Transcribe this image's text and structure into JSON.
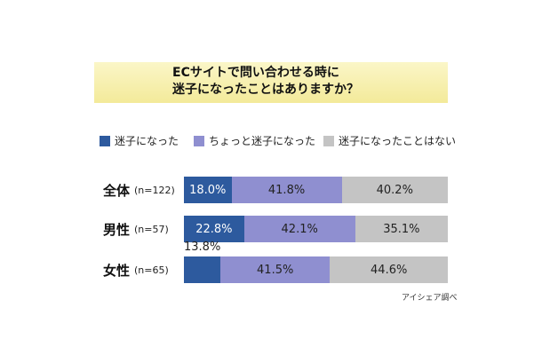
{
  "title_lines": [
    "ECサイトで問い合わせる時に",
    "迷子になったことはありますか？"
  ],
  "source": "アイシェア調べ",
  "colors": {
    "s0": "#2d5a9e",
    "s1": "#8f8fd0",
    "s2": "#c4c4c4"
  },
  "chart_data": {
    "type": "bar",
    "orientation": "horizontal",
    "stacked": true,
    "percent": true,
    "categories": [
      "全体",
      "男性",
      "女性"
    ],
    "sample_sizes": [
      "(n=122)",
      "(n=57)",
      "(n=65)"
    ],
    "series": [
      {
        "name": "迷子になった",
        "values": [
          18.0,
          22.8,
          13.8
        ],
        "labels": [
          "18.0%",
          "22.8%",
          "13.8%"
        ]
      },
      {
        "name": "ちょっと迷子になった",
        "values": [
          41.8,
          42.1,
          41.5
        ],
        "labels": [
          "41.8%",
          "42.1%",
          "41.5%"
        ]
      },
      {
        "name": "迷子になったことはない",
        "values": [
          40.2,
          35.1,
          44.6
        ],
        "labels": [
          "40.2%",
          "35.1%",
          "44.6%"
        ]
      }
    ],
    "legend_position": "top",
    "xlim": [
      0,
      100
    ]
  }
}
